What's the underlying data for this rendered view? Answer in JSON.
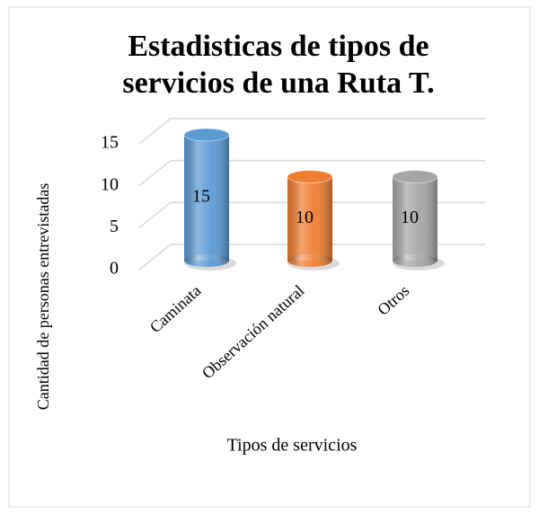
{
  "chart_data": {
    "type": "bar",
    "title": [
      "Estadisticas de tipos de",
      "servicios de una Ruta T."
    ],
    "categories": [
      "Caminata",
      "Observación natural",
      "Otros"
    ],
    "values": [
      15,
      10,
      10
    ],
    "colors": [
      "#5b9bd5",
      "#ed7d31",
      "#a5a5a5"
    ],
    "ylim": [
      0,
      15
    ],
    "yticks": [
      0,
      5,
      10,
      15
    ],
    "grid": true,
    "xlabel": "Tipos de servicios",
    "ylabel": "Cantidad de personas entrevistadas"
  }
}
